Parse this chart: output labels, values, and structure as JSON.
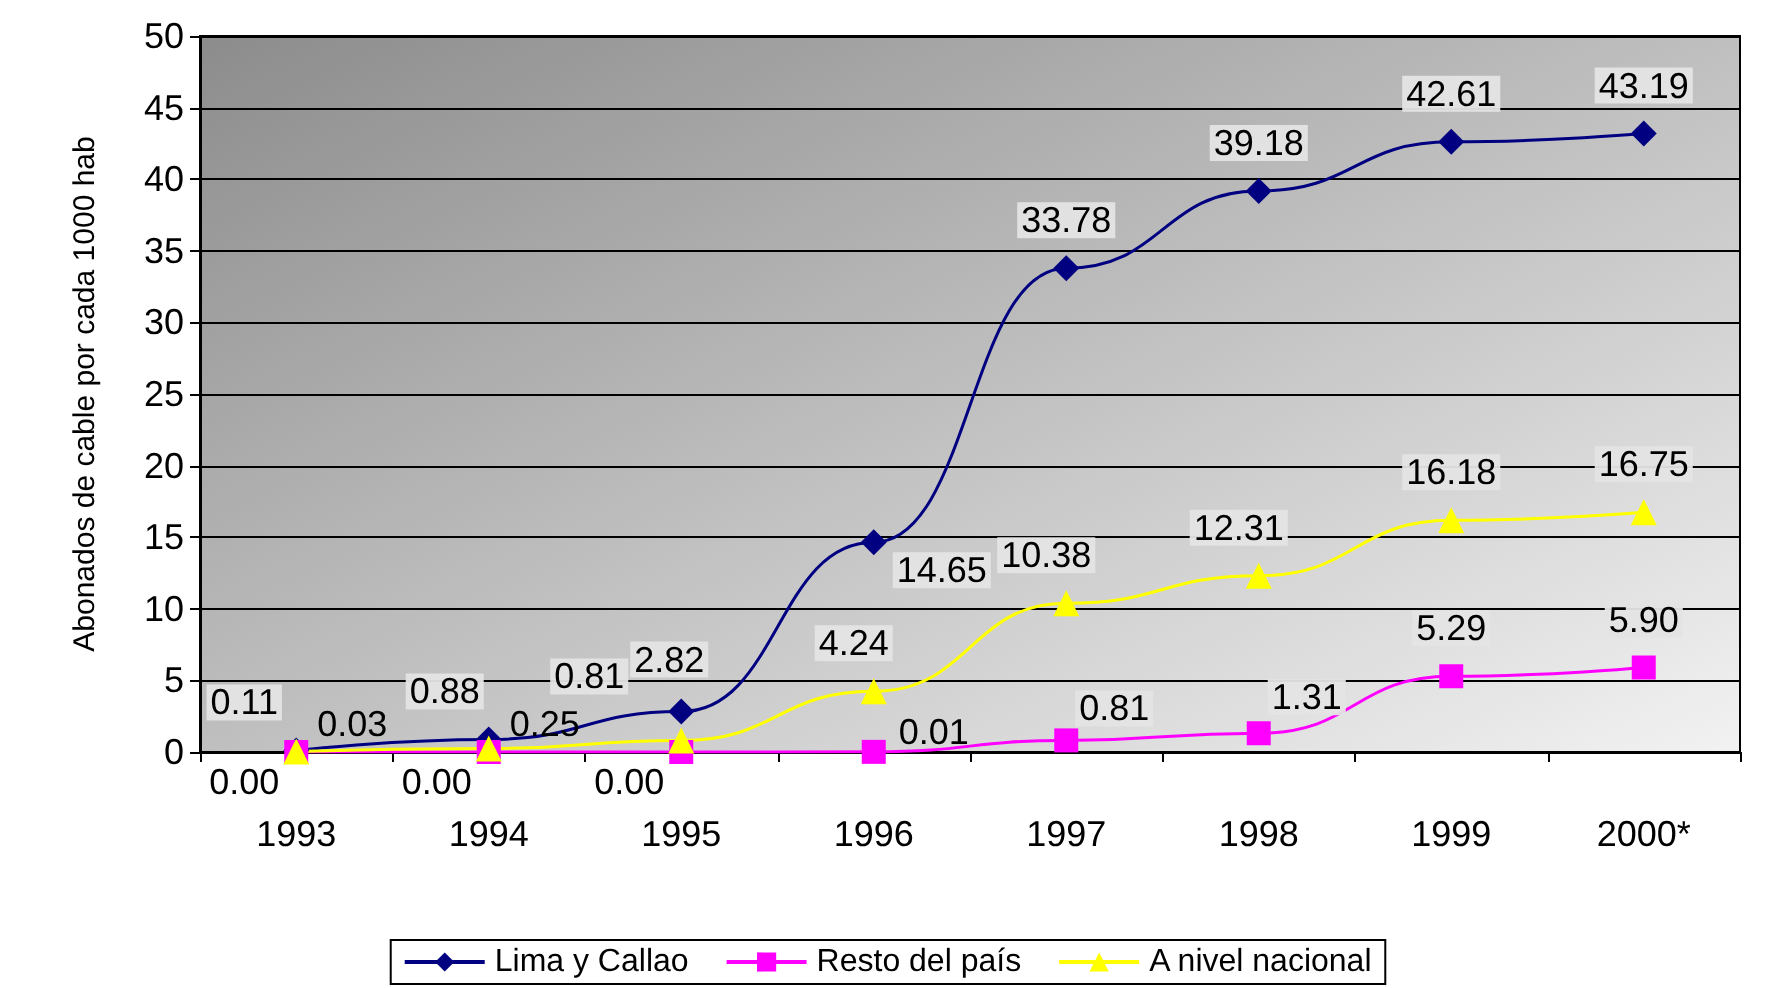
{
  "chart_data": {
    "type": "line",
    "ylabel": "Abonados de cable por cada 1000 hab",
    "categories": [
      "1993",
      "1994",
      "1995",
      "1996",
      "1997",
      "1998",
      "1999",
      "2000*"
    ],
    "series": [
      {
        "name": "Lima y Callao",
        "color": "#000080",
        "marker": "diamond",
        "values": [
          0.11,
          0.88,
          2.82,
          14.65,
          33.78,
          39.18,
          42.61,
          43.19
        ],
        "value_labels": [
          "0.11",
          "0.88",
          "2.82",
          "14.65",
          "33.78",
          "39.18",
          "42.61",
          "43.19"
        ]
      },
      {
        "name": "Resto del país",
        "color": "#ff00ff",
        "marker": "square",
        "values": [
          0,
          0,
          0,
          0.01,
          0.81,
          1.31,
          5.29,
          5.9
        ],
        "value_labels": [
          "0.00",
          "0.00",
          "0.00",
          "0.01",
          "0.81",
          "1.31",
          "5.29",
          "5.90"
        ]
      },
      {
        "name": "A nivel nacional",
        "color": "#ffff00",
        "marker": "triangle",
        "values": [
          0.03,
          0.25,
          0.81,
          4.24,
          10.38,
          12.31,
          16.18,
          16.75
        ],
        "value_labels": [
          "0.03",
          "0.25",
          "0.81",
          "4.24",
          "10.38",
          "12.31",
          "16.18",
          "16.75"
        ]
      }
    ],
    "ylim": [
      0,
      50
    ],
    "yticks": [
      0,
      5,
      10,
      15,
      20,
      25,
      30,
      35,
      40,
      45,
      50
    ],
    "grid": "y",
    "legend": "bottom"
  }
}
